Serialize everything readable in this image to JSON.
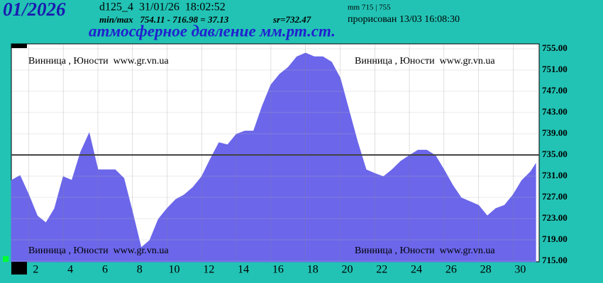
{
  "chart_data": {
    "type": "area",
    "title": "01/2026",
    "subtitle": "атмосферное давление мм.рт.ст.",
    "annotations": [
      "d125_4  31/01/26  18:02:52",
      "min/max   754.11 - 716.98 = 37.13",
      "sr=732.47",
      "mm 715 | 755",
      "прорисован 13/03 16:08:30"
    ],
    "watermarks": [
      "Винница , Юности  www.gr.vn.ua",
      "Винница , Юности  www.gr.vn.ua",
      "Винница , Юности  www.gr.vn.ua",
      "Винница , Юности  www.gr.vn.ua"
    ],
    "color": "#6b66ea",
    "x": [
      1,
      1.5,
      2,
      2.5,
      3,
      3.5,
      4,
      4.5,
      5,
      5.5,
      6,
      6.5,
      7,
      7.5,
      8,
      8.5,
      9,
      9.5,
      10,
      10.5,
      11,
      11.5,
      12,
      12.5,
      13,
      13.5,
      14,
      14.5,
      15,
      15.5,
      16,
      16.5,
      17,
      17.5,
      18,
      18.5,
      19,
      19.5,
      20,
      20.5,
      21,
      21.5,
      22,
      22.5,
      23,
      23.5,
      24,
      24.5,
      25,
      25.5,
      26,
      26.5,
      27,
      27.5,
      28,
      28.5,
      29,
      29.5,
      30,
      30.5,
      31,
      31.3
    ],
    "values": [
      730.2,
      731.1,
      727.5,
      723.5,
      722.2,
      724.9,
      730.9,
      730.2,
      735.5,
      739.1,
      732.2,
      732.2,
      732.2,
      730.6,
      724.2,
      717.5,
      718.9,
      722.9,
      724.9,
      726.6,
      727.5,
      728.9,
      730.9,
      734.2,
      737.3,
      736.9,
      738.9,
      739.5,
      739.5,
      744.2,
      748.2,
      750.2,
      751.5,
      753.5,
      754.2,
      753.5,
      753.5,
      752.5,
      749.5,
      743.5,
      737.5,
      732.2,
      731.5,
      730.9,
      732.2,
      733.8,
      734.9,
      735.9,
      735.9,
      734.9,
      732.2,
      729.3,
      726.9,
      726.2,
      725.5,
      723.5,
      724.9,
      725.5,
      727.5,
      730.2,
      731.8,
      733.3
    ],
    "xlim": [
      1,
      31.5
    ],
    "xticks": [
      2,
      4,
      6,
      8,
      10,
      12,
      14,
      16,
      18,
      20,
      22,
      24,
      26,
      28,
      30
    ],
    "ylim": [
      715,
      755
    ],
    "yticks": [
      {
        "value": 755,
        "label": "755.00"
      },
      {
        "value": 751,
        "label": "751.00"
      },
      {
        "value": 747,
        "label": "747.00"
      },
      {
        "value": 743,
        "label": "743.00"
      },
      {
        "value": 739,
        "label": "739.00"
      },
      {
        "value": 735,
        "label": "735.00"
      },
      {
        "value": 731,
        "label": "731.00"
      },
      {
        "value": 727,
        "label": "727.00"
      },
      {
        "value": 723,
        "label": "723.00"
      },
      {
        "value": 719,
        "label": "719.00"
      },
      {
        "value": 715,
        "label": "715.00"
      }
    ],
    "reference_line": 735,
    "grid": true
  }
}
